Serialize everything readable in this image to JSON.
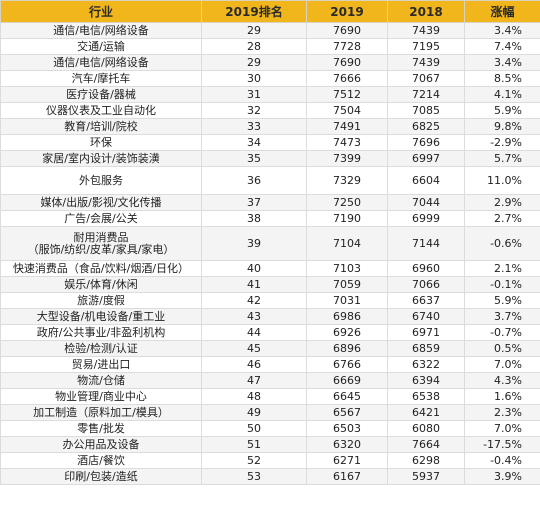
{
  "headers": [
    "行业",
    "2019排名",
    "2019",
    "2018",
    "涨幅"
  ],
  "rows": [
    {
      "industry": [
        "通信/电信/网络设备"
      ],
      "rank": "29",
      "v2019": "7690",
      "v2018": "7439",
      "change": "3.4%",
      "h": 16
    },
    {
      "industry": [
        "交通/运输"
      ],
      "rank": "28",
      "v2019": "7728",
      "v2018": "7195",
      "change": "7.4%",
      "h": 16
    },
    {
      "industry": [
        "通信/电信/网络设备"
      ],
      "rank": "29",
      "v2019": "7690",
      "v2018": "7439",
      "change": "3.4%",
      "h": 16
    },
    {
      "industry": [
        "汽车/摩托车"
      ],
      "rank": "30",
      "v2019": "7666",
      "v2018": "7067",
      "change": "8.5%",
      "h": 16
    },
    {
      "industry": [
        "医疗设备/器械"
      ],
      "rank": "31",
      "v2019": "7512",
      "v2018": "7214",
      "change": "4.1%",
      "h": 16
    },
    {
      "industry": [
        "仪器仪表及工业自动化"
      ],
      "rank": "32",
      "v2019": "7504",
      "v2018": "7085",
      "change": "5.9%",
      "h": 16
    },
    {
      "industry": [
        "教育/培训/院校"
      ],
      "rank": "33",
      "v2019": "7491",
      "v2018": "6825",
      "change": "9.8%",
      "h": 16
    },
    {
      "industry": [
        "环保"
      ],
      "rank": "34",
      "v2019": "7473",
      "v2018": "7696",
      "change": "-2.9%",
      "h": 16
    },
    {
      "industry": [
        "家居/室内设计/装饰装潢"
      ],
      "rank": "35",
      "v2019": "7399",
      "v2018": "6997",
      "change": "5.7%",
      "h": 16
    },
    {
      "industry": [
        "外包服务"
      ],
      "rank": "36",
      "v2019": "7329",
      "v2018": "6604",
      "change": "11.0%",
      "h": 28
    },
    {
      "industry": [
        "媒体/出版/影视/文化传播"
      ],
      "rank": "37",
      "v2019": "7250",
      "v2018": "7044",
      "change": "2.9%",
      "h": 16
    },
    {
      "industry": [
        "广告/会展/公关"
      ],
      "rank": "38",
      "v2019": "7190",
      "v2018": "6999",
      "change": "2.7%",
      "h": 16
    },
    {
      "industry": [
        "耐用消费品",
        "（服饰/纺织/皮革/家具/家电）"
      ],
      "rank": "39",
      "v2019": "7104",
      "v2018": "7144",
      "change": "-0.6%",
      "h": 34
    },
    {
      "industry": [
        "快速消费品（食品/饮料/烟酒/日化）"
      ],
      "rank": "40",
      "v2019": "7103",
      "v2018": "6960",
      "change": "2.1%",
      "h": 16
    },
    {
      "industry": [
        "娱乐/体育/休闲"
      ],
      "rank": "41",
      "v2019": "7059",
      "v2018": "7066",
      "change": "-0.1%",
      "h": 16
    },
    {
      "industry": [
        "旅游/度假"
      ],
      "rank": "42",
      "v2019": "7031",
      "v2018": "6637",
      "change": "5.9%",
      "h": 16
    },
    {
      "industry": [
        "大型设备/机电设备/重工业"
      ],
      "rank": "43",
      "v2019": "6986",
      "v2018": "6740",
      "change": "3.7%",
      "h": 16
    },
    {
      "industry": [
        "政府/公共事业/非盈利机构"
      ],
      "rank": "44",
      "v2019": "6926",
      "v2018": "6971",
      "change": "-0.7%",
      "h": 16
    },
    {
      "industry": [
        "检验/检测/认证"
      ],
      "rank": "45",
      "v2019": "6896",
      "v2018": "6859",
      "change": "0.5%",
      "h": 16
    },
    {
      "industry": [
        "贸易/进出口"
      ],
      "rank": "46",
      "v2019": "6766",
      "v2018": "6322",
      "change": "7.0%",
      "h": 16
    },
    {
      "industry": [
        "物流/仓储"
      ],
      "rank": "47",
      "v2019": "6669",
      "v2018": "6394",
      "change": "4.3%",
      "h": 16
    },
    {
      "industry": [
        "物业管理/商业中心"
      ],
      "rank": "48",
      "v2019": "6645",
      "v2018": "6538",
      "change": "1.6%",
      "h": 16
    },
    {
      "industry": [
        "加工制造（原料加工/模具）"
      ],
      "rank": "49",
      "v2019": "6567",
      "v2018": "6421",
      "change": "2.3%",
      "h": 16
    },
    {
      "industry": [
        "零售/批发"
      ],
      "rank": "50",
      "v2019": "6503",
      "v2018": "6080",
      "change": "7.0%",
      "h": 16
    },
    {
      "industry": [
        "办公用品及设备"
      ],
      "rank": "51",
      "v2019": "6320",
      "v2018": "7664",
      "change": "-17.5%",
      "h": 16
    },
    {
      "industry": [
        "酒店/餐饮"
      ],
      "rank": "52",
      "v2019": "6271",
      "v2018": "6298",
      "change": "-0.4%",
      "h": 16
    },
    {
      "industry": [
        "印刷/包装/造纸"
      ],
      "rank": "53",
      "v2019": "6167",
      "v2018": "5937",
      "change": "3.9%",
      "h": 16
    }
  ]
}
